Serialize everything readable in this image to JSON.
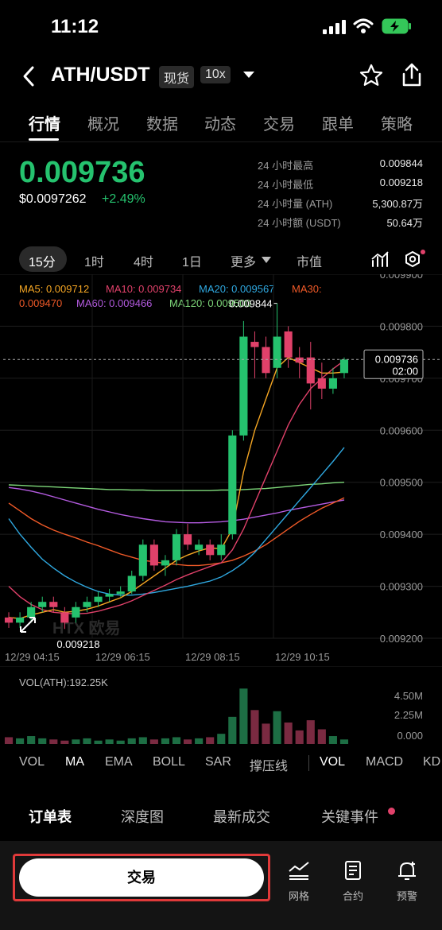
{
  "status": {
    "time": "11:12"
  },
  "header": {
    "pair": "ATH/USDT",
    "market": "现货",
    "leverage": "10x"
  },
  "tabs": [
    {
      "label": "行情",
      "active": true
    },
    {
      "label": "概况"
    },
    {
      "label": "数据"
    },
    {
      "label": "动态"
    },
    {
      "label": "交易"
    },
    {
      "label": "跟单"
    },
    {
      "label": "策略"
    }
  ],
  "ticker": {
    "price": "0.009736",
    "usd": "$0.0097262",
    "change": "+2.49%",
    "stats": [
      {
        "label": "24 小时最高",
        "value": "0.009844"
      },
      {
        "label": "24 小时最低",
        "value": "0.009218"
      },
      {
        "label": "24 小时量 (ATH)",
        "value": "5,300.87万"
      },
      {
        "label": "24 小时额 (USDT)",
        "value": "50.64万"
      }
    ]
  },
  "timeframes": [
    "15分",
    "1时",
    "4时",
    "1日",
    "更多",
    "市值"
  ],
  "ma_legend": {
    "ma5": "MA5: 0.009712",
    "ma10": "MA10: 0.009734",
    "ma20": "MA20: 0.009567",
    "ma30_a": "MA30:",
    "ma30_b": "0.009470",
    "ma60": "MA60: 0.009466",
    "ma120": "MA120: 0.009500"
  },
  "colors": {
    "up": "#25c26e",
    "down": "#e0416a",
    "ma5": "#f5a623",
    "ma10": "#e0416a",
    "ma20": "#2fa8e0",
    "ma30": "#f05a28",
    "ma60": "#b45be0",
    "ma120": "#7ed87a"
  },
  "chart": {
    "y_ticks": [
      "0.009900",
      "0.009800",
      "0.009700",
      "0.009600",
      "0.009500",
      "0.009400",
      "0.009300",
      "0.009200"
    ],
    "x_ticks": [
      "12/29 04:15",
      "12/29 06:15",
      "12/29 08:15",
      "12/29 10:15"
    ],
    "high_label": "0.009844",
    "low_label": "0.009218",
    "current_price": "0.009736",
    "current_time": "02:00",
    "watermark": "HTX 欧易"
  },
  "chart_data": {
    "type": "candlestick",
    "ylim": [
      0.0092,
      0.0099
    ],
    "candles": [
      {
        "o": 0.00924,
        "c": 0.00923,
        "h": 0.00925,
        "l": 0.00922
      },
      {
        "o": 0.00923,
        "c": 0.00924,
        "h": 0.00925,
        "l": 0.00922
      },
      {
        "o": 0.00924,
        "c": 0.00926,
        "h": 0.00927,
        "l": 0.00923
      },
      {
        "o": 0.00926,
        "c": 0.00927,
        "h": 0.00928,
        "l": 0.00925
      },
      {
        "o": 0.00927,
        "c": 0.00926,
        "h": 0.00928,
        "l": 0.00925
      },
      {
        "o": 0.00925,
        "c": 0.00923,
        "h": 0.00926,
        "l": 0.009218
      },
      {
        "o": 0.00924,
        "c": 0.00926,
        "h": 0.00927,
        "l": 0.00923
      },
      {
        "o": 0.00926,
        "c": 0.00927,
        "h": 0.00928,
        "l": 0.00925
      },
      {
        "o": 0.00927,
        "c": 0.00928,
        "h": 0.00929,
        "l": 0.00926
      },
      {
        "o": 0.00928,
        "c": 0.009285,
        "h": 0.009295,
        "l": 0.00927
      },
      {
        "o": 0.009285,
        "c": 0.00929,
        "h": 0.0093,
        "l": 0.00928
      },
      {
        "o": 0.00929,
        "c": 0.00932,
        "h": 0.00933,
        "l": 0.009285
      },
      {
        "o": 0.00932,
        "c": 0.00938,
        "h": 0.00939,
        "l": 0.00931
      },
      {
        "o": 0.00938,
        "c": 0.00934,
        "h": 0.00939,
        "l": 0.00933
      },
      {
        "o": 0.00934,
        "c": 0.00935,
        "h": 0.00936,
        "l": 0.00932
      },
      {
        "o": 0.00935,
        "c": 0.0094,
        "h": 0.00941,
        "l": 0.00934
      },
      {
        "o": 0.0094,
        "c": 0.00938,
        "h": 0.00942,
        "l": 0.00937
      },
      {
        "o": 0.00937,
        "c": 0.00938,
        "h": 0.00939,
        "l": 0.00936
      },
      {
        "o": 0.00938,
        "c": 0.00936,
        "h": 0.00939,
        "l": 0.00935
      },
      {
        "o": 0.00936,
        "c": 0.00938,
        "h": 0.0094,
        "l": 0.00935
      },
      {
        "o": 0.0094,
        "c": 0.00959,
        "h": 0.0096,
        "l": 0.00939
      },
      {
        "o": 0.00959,
        "c": 0.00978,
        "h": 0.00981,
        "l": 0.00958
      },
      {
        "o": 0.00977,
        "c": 0.00976,
        "h": 0.00979,
        "l": 0.0097
      },
      {
        "o": 0.00976,
        "c": 0.00971,
        "h": 0.00978,
        "l": 0.0097
      },
      {
        "o": 0.00972,
        "c": 0.00978,
        "h": 0.009844,
        "l": 0.0097
      },
      {
        "o": 0.00979,
        "c": 0.00974,
        "h": 0.0098,
        "l": 0.00972
      },
      {
        "o": 0.00974,
        "c": 0.00973,
        "h": 0.00976,
        "l": 0.0097
      },
      {
        "o": 0.00974,
        "c": 0.00969,
        "h": 0.00977,
        "l": 0.00964
      },
      {
        "o": 0.0097,
        "c": 0.00968,
        "h": 0.00973,
        "l": 0.00966
      },
      {
        "o": 0.00968,
        "c": 0.0097,
        "h": 0.00972,
        "l": 0.00967
      },
      {
        "o": 0.00971,
        "c": 0.009736,
        "h": 0.00974,
        "l": 0.0097
      }
    ],
    "volume": {
      "ylabel": "VOL(ATH):192.25K",
      "ticks": [
        "4.50M",
        "2.25M",
        "0.000"
      ],
      "ylim": [
        0,
        5200000
      ],
      "values": [
        0.6,
        0.5,
        0.7,
        0.5,
        0.4,
        0.3,
        0.4,
        0.5,
        0.3,
        0.4,
        0.3,
        0.5,
        0.6,
        0.4,
        0.5,
        0.6,
        0.4,
        0.5,
        0.6,
        0.9,
        2.4,
        4.9,
        3.0,
        1.8,
        2.9,
        1.9,
        1.2,
        2.1,
        1.3,
        0.7,
        0.4
      ]
    },
    "ma": {
      "ma5": [
        0.00924,
        0.009238,
        0.009245,
        0.00925,
        0.009255,
        0.00925,
        0.009252,
        0.009256,
        0.009262,
        0.00927,
        0.009278,
        0.00929,
        0.009305,
        0.00932,
        0.009335,
        0.00935,
        0.00936,
        0.009368,
        0.009374,
        0.009372,
        0.00941,
        0.00952,
        0.0096,
        0.00966,
        0.00972,
        0.00974,
        0.00973,
        0.00972,
        0.00971,
        0.00971,
        0.009712
      ],
      "ma10": [
        0.0093,
        0.00928,
        0.009265,
        0.009255,
        0.00925,
        0.009248,
        0.009247,
        0.009248,
        0.009252,
        0.009258,
        0.009264,
        0.009272,
        0.009282,
        0.009292,
        0.009302,
        0.009313,
        0.009322,
        0.00933,
        0.009338,
        0.009345,
        0.00937,
        0.00941,
        0.00946,
        0.00951,
        0.00956,
        0.00961,
        0.00965,
        0.00968,
        0.0097,
        0.009718,
        0.009734
      ],
      "ma20": [
        0.00943,
        0.0094,
        0.009375,
        0.009352,
        0.009335,
        0.00932,
        0.009308,
        0.009298,
        0.00929,
        0.009285,
        0.009283,
        0.009283,
        0.009285,
        0.009288,
        0.009292,
        0.009296,
        0.0093,
        0.009305,
        0.00931,
        0.009318,
        0.00933,
        0.009345,
        0.009365,
        0.00939,
        0.009415,
        0.00944,
        0.009465,
        0.00949,
        0.009515,
        0.00954,
        0.009567
      ],
      "ma30": [
        0.00946,
        0.009445,
        0.00943,
        0.009418,
        0.009408,
        0.0094,
        0.009393,
        0.009385,
        0.009378,
        0.00937,
        0.009362,
        0.009356,
        0.00935,
        0.009347,
        0.009344,
        0.009342,
        0.00934,
        0.00934,
        0.009342,
        0.009345,
        0.00935,
        0.009358,
        0.009368,
        0.00938,
        0.009395,
        0.00941,
        0.009425,
        0.009438,
        0.00945,
        0.00946,
        0.00947
      ],
      "ma60": [
        0.00949,
        0.009487,
        0.009483,
        0.009478,
        0.009472,
        0.009466,
        0.00946,
        0.009454,
        0.009448,
        0.009443,
        0.009438,
        0.009434,
        0.00943,
        0.009427,
        0.009424,
        0.009423,
        0.009422,
        0.009422,
        0.009423,
        0.009424,
        0.009426,
        0.009429,
        0.009433,
        0.009437,
        0.009441,
        0.009446,
        0.00945,
        0.009454,
        0.009458,
        0.009462,
        0.009466
      ],
      "ma120": [
        0.009495,
        0.009494,
        0.009493,
        0.009492,
        0.009491,
        0.00949,
        0.009489,
        0.009488,
        0.009487,
        0.009486,
        0.009486,
        0.009485,
        0.009485,
        0.009484,
        0.009484,
        0.009484,
        0.009484,
        0.009484,
        0.009484,
        0.009485,
        0.009485,
        0.009486,
        0.009487,
        0.009488,
        0.00949,
        0.009492,
        0.009494,
        0.009496,
        0.009497,
        0.009499,
        0.0095
      ]
    }
  },
  "indicators": [
    "VOL",
    "MA",
    "EMA",
    "BOLL",
    "SAR",
    "撑压线",
    "VOL",
    "MACD",
    "KD"
  ],
  "bottom_tabs": [
    "订单表",
    "深度图",
    "最新成交",
    "关键事件"
  ],
  "actions": {
    "trade": "交易",
    "grid": "网格",
    "contract": "合约",
    "alert": "预警"
  }
}
